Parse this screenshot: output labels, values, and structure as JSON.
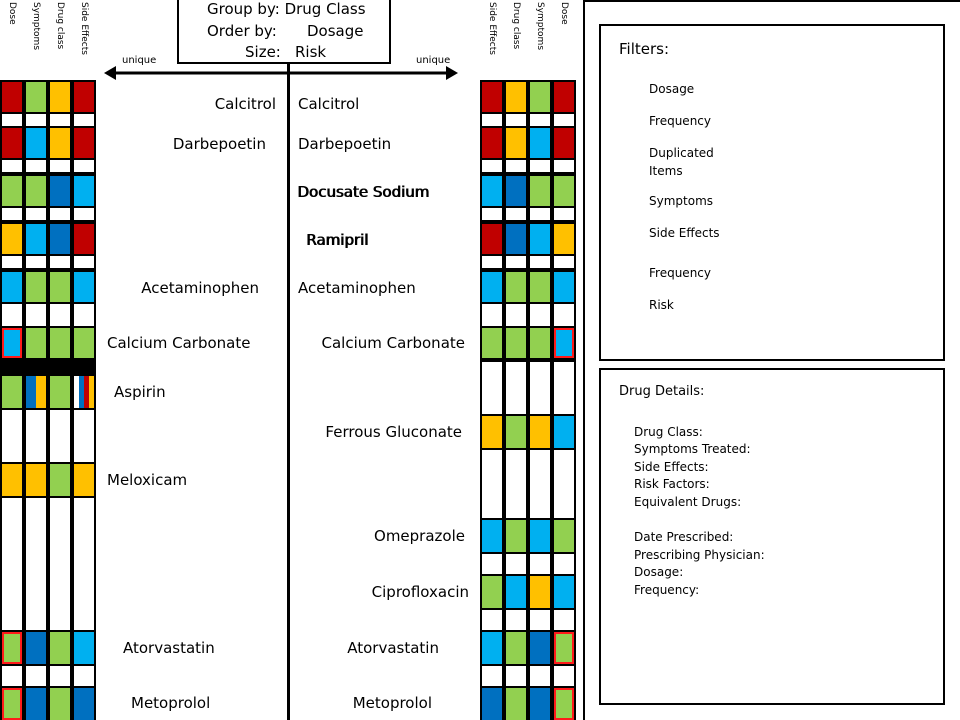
{
  "header": {
    "group_by": "Group by: Drug Class",
    "order_by": "Order by:",
    "order_by_value": "Dosage",
    "size": "Size:",
    "size_value": "Risk"
  },
  "arrows": {
    "left_label": "unique",
    "right_label": "unique"
  },
  "left_columns": [
    "Dose",
    "Symptoms",
    "Drug class",
    "Side Effects"
  ],
  "right_columns": [
    "Side Effects",
    "Drug class",
    "Symptoms",
    "Dose"
  ],
  "colors": {
    "R": "#c00000",
    "G": "#92d050",
    "B": "#00b0f0",
    "D": "#0070c0",
    "Y": "#ffc000",
    "W": "#ffffff",
    "highlight": "#ff1a1a"
  },
  "left_drugs": [
    "Calcitrol",
    "Darbepoetin",
    "Docusate Sodium",
    "Ramipril",
    "Acetaminophen",
    "Calcium Carbonate",
    "Aspirin",
    "Meloxicam",
    "Atorvastatin",
    "Metoprolol"
  ],
  "right_drugs": [
    "Calcitrol",
    "Darbepoetin",
    "Docusate Sodium",
    "Ramipril",
    "Acetaminophen",
    "Calcium Carbonate",
    "Ferrous Gluconate",
    "Omeprazole",
    "Ciprofloxacin",
    "Atorvastatin",
    "Metoprolol"
  ],
  "filters": {
    "title": "Filters:",
    "items": [
      "Dosage",
      "Frequency",
      "Duplicated Items",
      "Symptoms",
      "Side Effects",
      "Frequency",
      "Risk"
    ]
  },
  "details": {
    "title": "Drug Details:",
    "group1": [
      "Drug Class:",
      "Symptoms Treated:",
      "Side Effects:",
      "Risk Factors:",
      "Equivalent Drugs:"
    ],
    "group2": [
      "Date Prescribed:",
      "Prescribing Physician:",
      "Dosage:",
      "Frequency:"
    ]
  }
}
